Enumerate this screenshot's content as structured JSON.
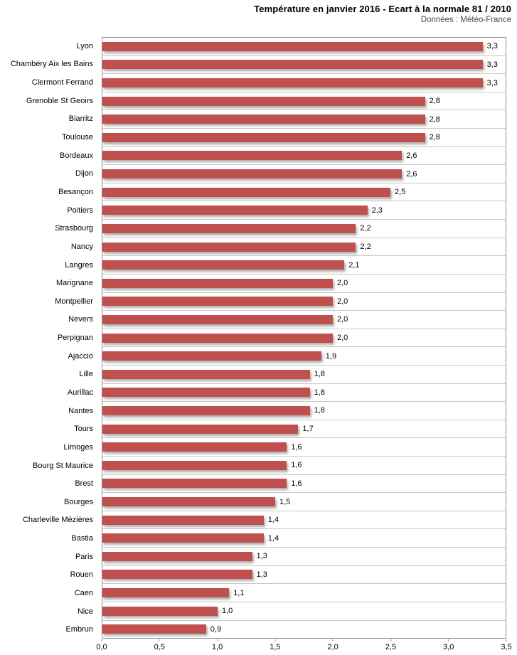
{
  "header": {
    "title": "Température en janvier 2016 - Ecart à la normale 81 / 2010",
    "subtitle": "Données : Météo-France"
  },
  "chart_data": {
    "type": "bar",
    "orientation": "horizontal",
    "title": "Température en janvier 2016 - Ecart à la normale 81 / 2010",
    "subtitle": "Données : Météo-France",
    "xlabel": "",
    "ylabel": "",
    "xlim": [
      0,
      3.5
    ],
    "x_ticks": [
      "0,0",
      "0,5",
      "1,0",
      "1,5",
      "2,0",
      "2,5",
      "3,0",
      "3,5"
    ],
    "grid": "horizontal category separators only, no vertical gridlines",
    "legend": "none",
    "bar_color": "#C0504D",
    "categories": [
      "Lyon",
      "Chambéry Aix les Bains",
      "Clermont Ferrand",
      "Grenoble St Geoirs",
      "Biarritz",
      "Toulouse",
      "Bordeaux",
      "Dijon",
      "Besançon",
      "Poitiers",
      "Strasbourg",
      "Nancy",
      "Langres",
      "Marignane",
      "Montpellier",
      "Nevers",
      "Perpignan",
      "Ajaccio",
      "Lille",
      "Aurillac",
      "Nantes",
      "Tours",
      "Limoges",
      "Bourg St Maurice",
      "Brest",
      "Bourges",
      "Charleville Mézières",
      "Bastia",
      "Paris",
      "Rouen",
      "Caen",
      "Nice",
      "Embrun"
    ],
    "values": [
      3.3,
      3.3,
      3.3,
      2.8,
      2.8,
      2.8,
      2.6,
      2.6,
      2.5,
      2.3,
      2.2,
      2.2,
      2.1,
      2.0,
      2.0,
      2.0,
      2.0,
      1.9,
      1.8,
      1.8,
      1.8,
      1.7,
      1.6,
      1.6,
      1.6,
      1.5,
      1.4,
      1.4,
      1.3,
      1.3,
      1.1,
      1.0,
      0.9
    ],
    "value_labels": [
      "3,3",
      "3,3",
      "3,3",
      "2,8",
      "2,8",
      "2,8",
      "2,6",
      "2,6",
      "2,5",
      "2,3",
      "2,2",
      "2,2",
      "2,1",
      "2,0",
      "2,0",
      "2,0",
      "2,0",
      "1,9",
      "1,8",
      "1,8",
      "1,8",
      "1,7",
      "1,6",
      "1,6",
      "1,6",
      "1,5",
      "1,4",
      "1,4",
      "1,3",
      "1,3",
      "1,1",
      "1,0",
      "0,9"
    ]
  }
}
